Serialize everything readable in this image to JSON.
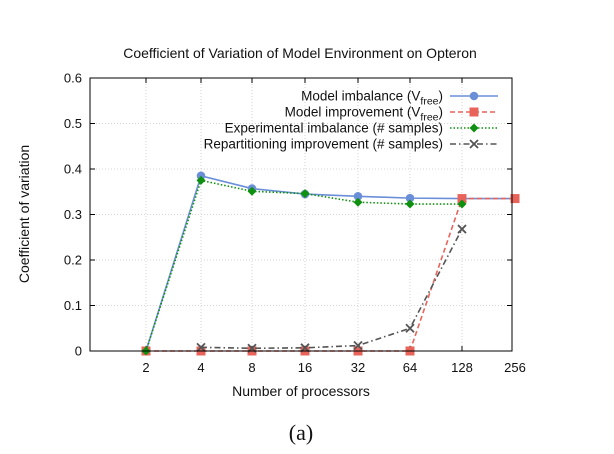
{
  "chart_data": {
    "type": "line",
    "title": "Coefficient of Variation of Model Environment on Opteron",
    "xlabel": "Number of processors",
    "ylabel": "Coefficient of variation",
    "caption": "(a)",
    "x_scale": "log2",
    "categories": [
      "2",
      "4",
      "8",
      "16",
      "32",
      "64",
      "128",
      "256"
    ],
    "ylim": [
      0,
      0.6
    ],
    "yticks": [
      "0",
      "0.1",
      "0.2",
      "0.3",
      "0.4",
      "0.5",
      "0.6"
    ],
    "grid": true,
    "legend_position": "top-right",
    "series": [
      {
        "name": "Model imbalance (V",
        "name_sub": "free",
        "name_end": ")",
        "color": "#6a8fd8",
        "marker": "circle",
        "dash": "solid",
        "values": [
          0.0,
          0.385,
          0.357,
          0.345,
          0.34,
          0.336,
          0.335,
          0.335
        ]
      },
      {
        "name": "Model improvement (V",
        "name_sub": "free",
        "name_end": ")",
        "color": "#e8645a",
        "marker": "square",
        "dash": "dashed",
        "values": [
          0.0,
          0.0,
          0.0,
          0.0,
          0.0,
          0.0,
          0.335,
          0.335
        ]
      },
      {
        "name": "Experimental imbalance (# samples)",
        "color": "#109010",
        "marker": "diamond",
        "dash": "dotted",
        "values": [
          0.0,
          0.375,
          0.351,
          0.346,
          0.327,
          0.323,
          0.323,
          null
        ]
      },
      {
        "name": "Repartitioning improvement (# samples)",
        "color": "#555555",
        "marker": "cross",
        "dash": "dashdot",
        "values": [
          null,
          0.008,
          0.006,
          0.007,
          0.012,
          0.05,
          0.268,
          null
        ]
      }
    ]
  }
}
